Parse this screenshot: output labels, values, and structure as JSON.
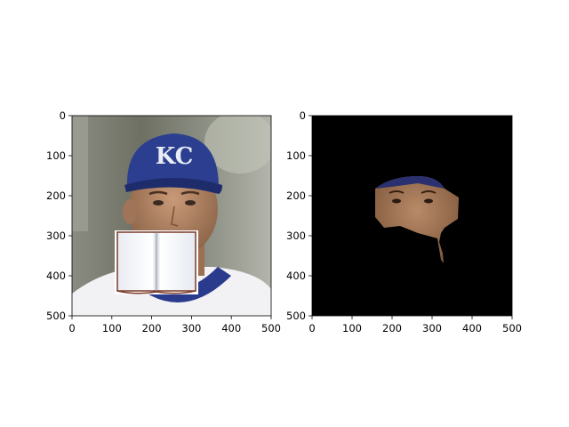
{
  "panels": [
    {
      "name": "left-panel",
      "content": "photo of person in blue KC baseball cap with open book icon overlaid on lower face",
      "cap_lettering": "KC",
      "x_ticks": [
        "0",
        "100",
        "200",
        "300",
        "400",
        "500"
      ],
      "y_ticks": [
        "0",
        "100",
        "200",
        "300",
        "400",
        "500"
      ]
    },
    {
      "name": "right-panel",
      "content": "segmentation mask showing face region on black background",
      "x_ticks": [
        "0",
        "100",
        "200",
        "300",
        "400",
        "500"
      ],
      "y_ticks": [
        "0",
        "100",
        "200",
        "300",
        "400",
        "500"
      ]
    }
  ],
  "colors": {
    "background": "#ffffff",
    "mask_background": "#000000",
    "cap_blue": "#2c3e8f",
    "skin": "#b08060",
    "book_border": "#7a3a2a"
  }
}
